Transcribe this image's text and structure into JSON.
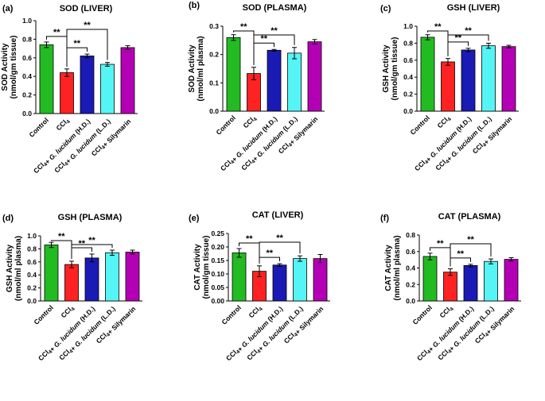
{
  "figure": {
    "description_labels": [
      "(a)",
      "(b)",
      "(c)",
      "(d)",
      "(e)",
      "(f)"
    ]
  },
  "chart_data": [
    {
      "type": "bar",
      "panel": "(a)",
      "title": "SOD (LIVER)",
      "ylabel": [
        "SOD Activity",
        "(nmol/gm tissue)"
      ],
      "ylim": [
        0,
        1.0
      ],
      "yticks": [
        "0.0",
        "0.2",
        "0.4",
        "0.6",
        "0.8",
        "1.0"
      ],
      "categories": [
        "Control",
        "CCl4",
        "CCl4+ G. lucidum (H.D.)",
        "CCl4+ G. lucidum (L.D.)",
        "CCl4+ Silymarin"
      ],
      "values": [
        0.74,
        0.44,
        0.62,
        0.53,
        0.71
      ],
      "errors": [
        0.03,
        0.04,
        0.02,
        0.02,
        0.02
      ],
      "colors": [
        "#22bb22",
        "#ff2222",
        "#1a1ab4",
        "#55f5f5",
        "#b400b4"
      ],
      "significance": [
        {
          "from": 0,
          "to": 1,
          "label": "**"
        },
        {
          "from": 1,
          "to": 2,
          "label": "**"
        },
        {
          "from": 1,
          "to": 3,
          "label": "**"
        }
      ]
    },
    {
      "type": "bar",
      "panel": "(b)",
      "title": "SOD (PLASMA)",
      "ylabel": [
        "SOD Activity",
        "(nmol/ml plasma)"
      ],
      "ylim": [
        0,
        0.3
      ],
      "yticks": [
        "0.0",
        "0.1",
        "0.2",
        "0.3"
      ],
      "categories": [
        "Control",
        "CCl4",
        "CCl4+ G. lucidum (H.D.)",
        "CCl4+ G. lucidum (L.D.)",
        "CCl4+ Silymarin"
      ],
      "values": [
        0.26,
        0.133,
        0.215,
        0.205,
        0.245
      ],
      "errors": [
        0.01,
        0.022,
        0.003,
        0.02,
        0.008
      ],
      "colors": [
        "#22bb22",
        "#ff2222",
        "#1a1ab4",
        "#55f5f5",
        "#b400b4"
      ],
      "significance": [
        {
          "from": 0,
          "to": 1,
          "label": "**"
        },
        {
          "from": 1,
          "to": 2,
          "label": "**"
        },
        {
          "from": 1,
          "to": 3,
          "label": "**"
        }
      ]
    },
    {
      "type": "bar",
      "panel": "(c)",
      "title": "GSH (LIVER)",
      "ylabel": [
        "GSH Activity",
        "(nmol/gm tissue)"
      ],
      "ylim": [
        0,
        1.0
      ],
      "yticks": [
        "0.0",
        "0.2",
        "0.4",
        "0.6",
        "0.8",
        "1.0"
      ],
      "categories": [
        "Control",
        "CCl4",
        "CCl4+ G. lucidum (H.D.)",
        "CCl4+ G. lucidum (L.D.)",
        "CCl4+ Silymarin"
      ],
      "values": [
        0.87,
        0.58,
        0.72,
        0.77,
        0.76
      ],
      "errors": [
        0.03,
        0.04,
        0.02,
        0.03,
        0.015
      ],
      "colors": [
        "#22bb22",
        "#ff2222",
        "#1a1ab4",
        "#55f5f5",
        "#b400b4"
      ],
      "significance": [
        {
          "from": 0,
          "to": 1,
          "label": "**"
        },
        {
          "from": 1,
          "to": 2,
          "label": "**"
        },
        {
          "from": 1,
          "to": 3,
          "label": "**"
        }
      ]
    },
    {
      "type": "bar",
      "panel": "(d)",
      "title": "GSH (PLASMA)",
      "ylabel": [
        "GSH Activity",
        "(nmol/ml plasma)"
      ],
      "ylim": [
        0,
        1.0
      ],
      "yticks": [
        "0.0",
        "0.2",
        "0.4",
        "0.6",
        "0.8",
        "1.0"
      ],
      "categories": [
        "Control",
        "CCl4",
        "CCl4+ G. lucidum (H.D.)",
        "CCl4+ G. lucidum (L.D.)",
        "CCl4+ Silymarin"
      ],
      "values": [
        0.86,
        0.56,
        0.66,
        0.74,
        0.75
      ],
      "errors": [
        0.04,
        0.05,
        0.06,
        0.04,
        0.03
      ],
      "colors": [
        "#22bb22",
        "#ff2222",
        "#1a1ab4",
        "#55f5f5",
        "#b400b4"
      ],
      "significance": [
        {
          "from": 0,
          "to": 1,
          "label": "**"
        },
        {
          "from": 1,
          "to": 2,
          "label": "**"
        },
        {
          "from": 1,
          "to": 3,
          "label": "**"
        }
      ]
    },
    {
      "type": "bar",
      "panel": "(e)",
      "title": "CAT (LIVER)",
      "ylabel": [
        "CAT Activity",
        "(nmol/gm tissue)"
      ],
      "ylim": [
        0,
        0.25
      ],
      "yticks": [
        "0.00",
        "0.05",
        "0.10",
        "0.15",
        "0.20",
        "0.25"
      ],
      "categories": [
        "Control",
        "CCl4",
        "CCl4+ G. lucidum (H.D.)",
        "CCl4+ G. lucidum (L.D.)",
        "CCl4+ Silymarin"
      ],
      "values": [
        0.178,
        0.11,
        0.133,
        0.157,
        0.157
      ],
      "errors": [
        0.016,
        0.02,
        0.005,
        0.01,
        0.015
      ],
      "colors": [
        "#22bb22",
        "#ff2222",
        "#1a1ab4",
        "#55f5f5",
        "#b400b4"
      ],
      "significance": [
        {
          "from": 0,
          "to": 1,
          "label": "**"
        },
        {
          "from": 1,
          "to": 2,
          "label": "**"
        },
        {
          "from": 1,
          "to": 3,
          "label": "**"
        }
      ]
    },
    {
      "type": "bar",
      "panel": "(f)",
      "title": "CAT (PLASMA)",
      "ylabel": [
        "CAT Activity",
        "(nmol/ml plasma)"
      ],
      "ylim": [
        0,
        0.8
      ],
      "yticks": [
        "0.0",
        "0.2",
        "0.4",
        "0.6",
        "0.8"
      ],
      "categories": [
        "Control",
        "CCl4",
        "CCl4+ G. lucidum (H.D.)",
        "CCl4+ G. lucidum (L.D.)",
        "CCl4+ Silymarin"
      ],
      "values": [
        0.54,
        0.35,
        0.43,
        0.48,
        0.505
      ],
      "errors": [
        0.04,
        0.04,
        0.015,
        0.03,
        0.02
      ],
      "colors": [
        "#22bb22",
        "#ff2222",
        "#1a1ab4",
        "#55f5f5",
        "#b400b4"
      ],
      "significance": [
        {
          "from": 0,
          "to": 1,
          "label": "**"
        },
        {
          "from": 1,
          "to": 2,
          "label": "**"
        },
        {
          "from": 1,
          "to": 3,
          "label": "**"
        }
      ]
    }
  ]
}
